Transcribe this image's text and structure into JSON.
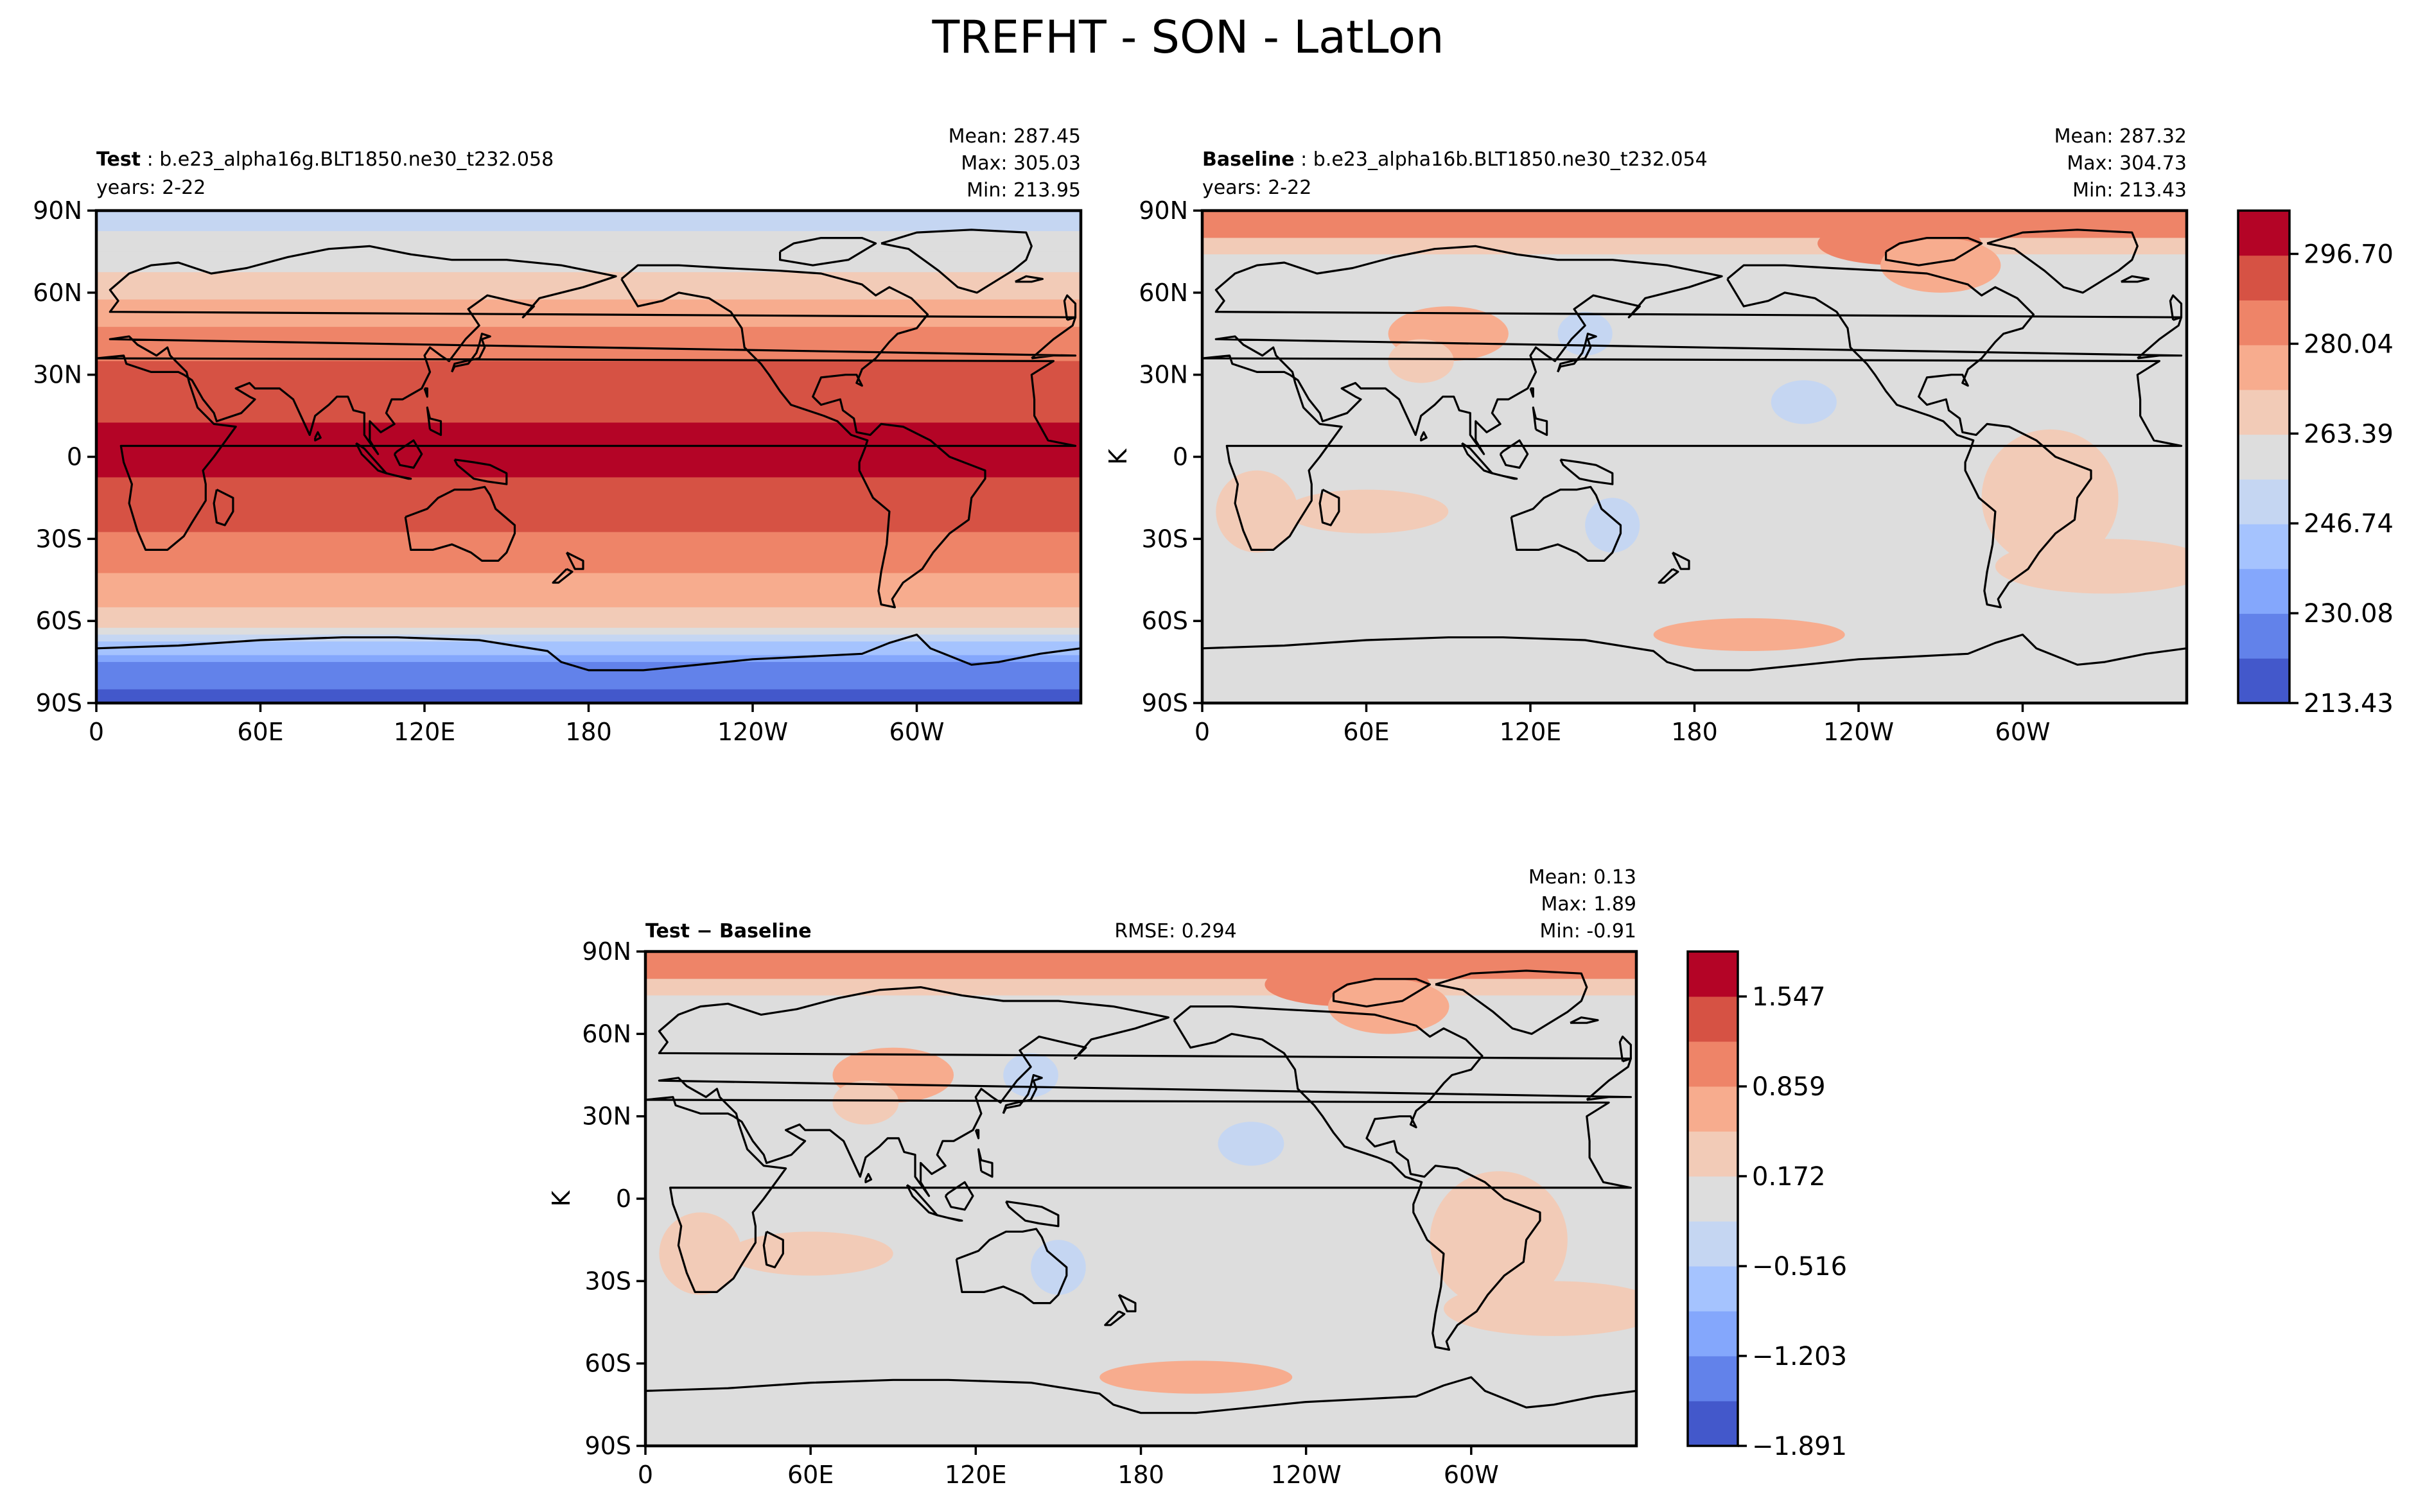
{
  "figure_title": "TREFHT - SON - LatLon",
  "chart_data": [
    {
      "type": "heatmap",
      "panel": "test",
      "label": "Test",
      "label_sep": ":",
      "case": "b.e23_alpha16g.BLT1850.ne30_t232.058",
      "years": "years: 2-22",
      "stats": [
        "Mean: 287.45",
        "Max: 305.03",
        "Min: 213.95"
      ],
      "ylabel": "",
      "yticks": [
        "90N",
        "60N",
        "30N",
        "0",
        "30S",
        "60S",
        "90S"
      ],
      "xticks": [
        "0",
        "60E",
        "120E",
        "180",
        "120W",
        "60W"
      ],
      "xlim": [
        0,
        360
      ],
      "ylim": [
        -90,
        90
      ],
      "field": {
        "latitudes": [
          -90,
          -75,
          -60,
          -45,
          -30,
          -15,
          0,
          15,
          30,
          45,
          60,
          75,
          90
        ],
        "zonal_mean_K": [
          216,
          230,
          268,
          278,
          287,
          295,
          298,
          296,
          291,
          282,
          270,
          258,
          252
        ]
      }
    },
    {
      "type": "heatmap",
      "panel": "baseline",
      "label": "Baseline",
      "label_sep": ":",
      "case": "b.e23_alpha16b.BLT1850.ne30_t232.054",
      "years": "years: 2-22",
      "stats": [
        "Mean: 287.32",
        "Max: 304.73",
        "Min: 213.43"
      ],
      "ylabel": "K",
      "yticks": [
        "90N",
        "60N",
        "30N",
        "0",
        "30S",
        "60S",
        "90S"
      ],
      "xticks": [
        "0",
        "60E",
        "120E",
        "180",
        "120W",
        "60W"
      ],
      "xlim": [
        0,
        360
      ],
      "ylim": [
        -90,
        90
      ],
      "colorbar": {
        "ticks": [
          "296.70",
          "280.04",
          "263.39",
          "246.74",
          "230.08",
          "213.43"
        ],
        "range": [
          213.43,
          304.73
        ],
        "colors": [
          "#4358cb",
          "#6282ea",
          "#84a7fc",
          "#a5c3fe",
          "#c5d6f2",
          "#dddddd",
          "#f2cbb7",
          "#f7ac8e",
          "#ee8468",
          "#d65244",
          "#b40426"
        ]
      }
    },
    {
      "type": "heatmap",
      "panel": "difference",
      "label": "Test − Baseline",
      "rmse": "RMSE: 0.294",
      "stats": [
        "Mean:  0.13",
        "Max:  1.89",
        "Min: -0.91"
      ],
      "ylabel": "K",
      "yticks": [
        "90N",
        "60N",
        "30N",
        "0",
        "30S",
        "60S",
        "90S"
      ],
      "xticks": [
        "0",
        "60E",
        "120E",
        "180",
        "120W",
        "60W"
      ],
      "xlim": [
        0,
        360
      ],
      "ylim": [
        -90,
        90
      ],
      "colorbar": {
        "ticks": [
          "1.547",
          "0.859",
          "0.172",
          "−0.516",
          "−1.203",
          "−1.891"
        ],
        "range": [
          -1.891,
          1.891
        ],
        "colors": [
          "#4358cb",
          "#6282ea",
          "#84a7fc",
          "#a5c3fe",
          "#c5d6f2",
          "#dddddd",
          "#f2cbb7",
          "#f7ac8e",
          "#ee8468",
          "#d65244",
          "#b40426"
        ]
      }
    }
  ]
}
